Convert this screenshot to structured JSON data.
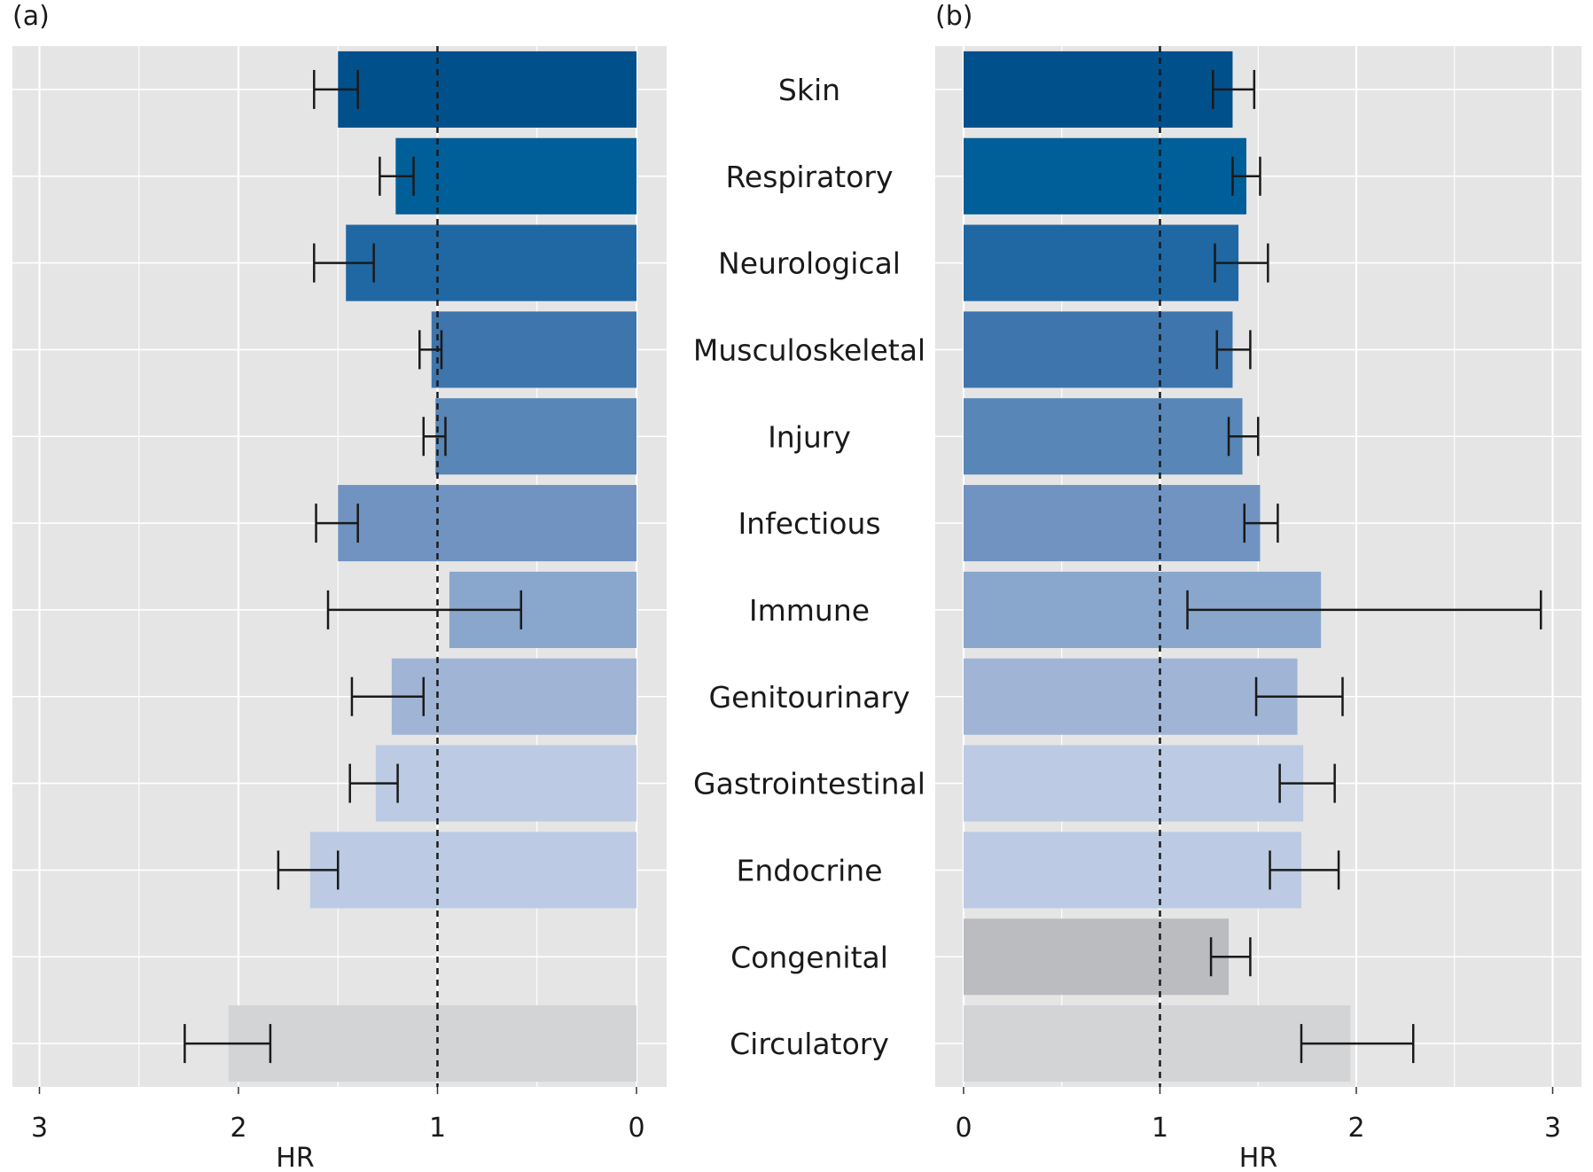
{
  "chart_data": [
    {
      "panel": "(a)",
      "type": "bar",
      "orientation": "horizontal",
      "x_reversed": true,
      "xlabel": "HR",
      "xlim": [
        0,
        3.15
      ],
      "xticks": [
        0,
        1,
        2,
        3
      ],
      "reference_line": 1,
      "grid": true,
      "categories": [
        "Skin",
        "Respiratory",
        "Neurological",
        "Musculoskeletal",
        "Injury",
        "Infectious",
        "Immune",
        "Genitourinary",
        "Gastrointestinal",
        "Endocrine",
        "Congenital",
        "Circulatory"
      ],
      "values": [
        1.5,
        1.21,
        1.46,
        1.03,
        1.01,
        1.5,
        0.94,
        1.23,
        1.31,
        1.64,
        null,
        2.05
      ],
      "ci_low": [
        1.4,
        1.12,
        1.32,
        0.98,
        0.96,
        1.4,
        0.58,
        1.07,
        1.2,
        1.5,
        null,
        1.84
      ],
      "ci_high": [
        1.62,
        1.29,
        1.62,
        1.09,
        1.07,
        1.61,
        1.55,
        1.43,
        1.44,
        1.8,
        null,
        2.27
      ],
      "colors": [
        "#00508c",
        "#005e98",
        "#1f68a3",
        "#3e75ac",
        "#5786b7",
        "#7093c1",
        "#89a6cc",
        "#a0b4d5",
        "#bccbe3",
        "#bccbe3",
        "#bbbcc0",
        "#d3d4d6"
      ]
    },
    {
      "panel": "(b)",
      "type": "bar",
      "orientation": "horizontal",
      "x_reversed": false,
      "xlabel": "HR",
      "xlim": [
        0,
        3.15
      ],
      "xticks": [
        0,
        1,
        2,
        3
      ],
      "reference_line": 1,
      "grid": true,
      "categories": [
        "Skin",
        "Respiratory",
        "Neurological",
        "Musculoskeletal",
        "Injury",
        "Infectious",
        "Immune",
        "Genitourinary",
        "Gastrointestinal",
        "Endocrine",
        "Congenital",
        "Circulatory"
      ],
      "values": [
        1.37,
        1.44,
        1.4,
        1.37,
        1.42,
        1.51,
        1.82,
        1.7,
        1.73,
        1.72,
        1.35,
        1.97
      ],
      "ci_low": [
        1.27,
        1.37,
        1.28,
        1.29,
        1.35,
        1.43,
        1.14,
        1.49,
        1.61,
        1.56,
        1.26,
        1.72
      ],
      "ci_high": [
        1.48,
        1.51,
        1.55,
        1.46,
        1.5,
        1.6,
        2.94,
        1.93,
        1.89,
        1.91,
        1.46,
        2.29
      ],
      "colors": [
        "#00508c",
        "#005e98",
        "#1f68a3",
        "#3e75ac",
        "#5786b7",
        "#7093c1",
        "#89a6cc",
        "#a0b4d5",
        "#bccbe3",
        "#bccbe3",
        "#bbbcc0",
        "#d3d4d6"
      ]
    }
  ],
  "style": {
    "panel_background": "#e5e5e6",
    "grid_color": "#ffffff",
    "errorbar_color": "#1a1a1a",
    "reference_line_color": "#1a1a1a"
  }
}
